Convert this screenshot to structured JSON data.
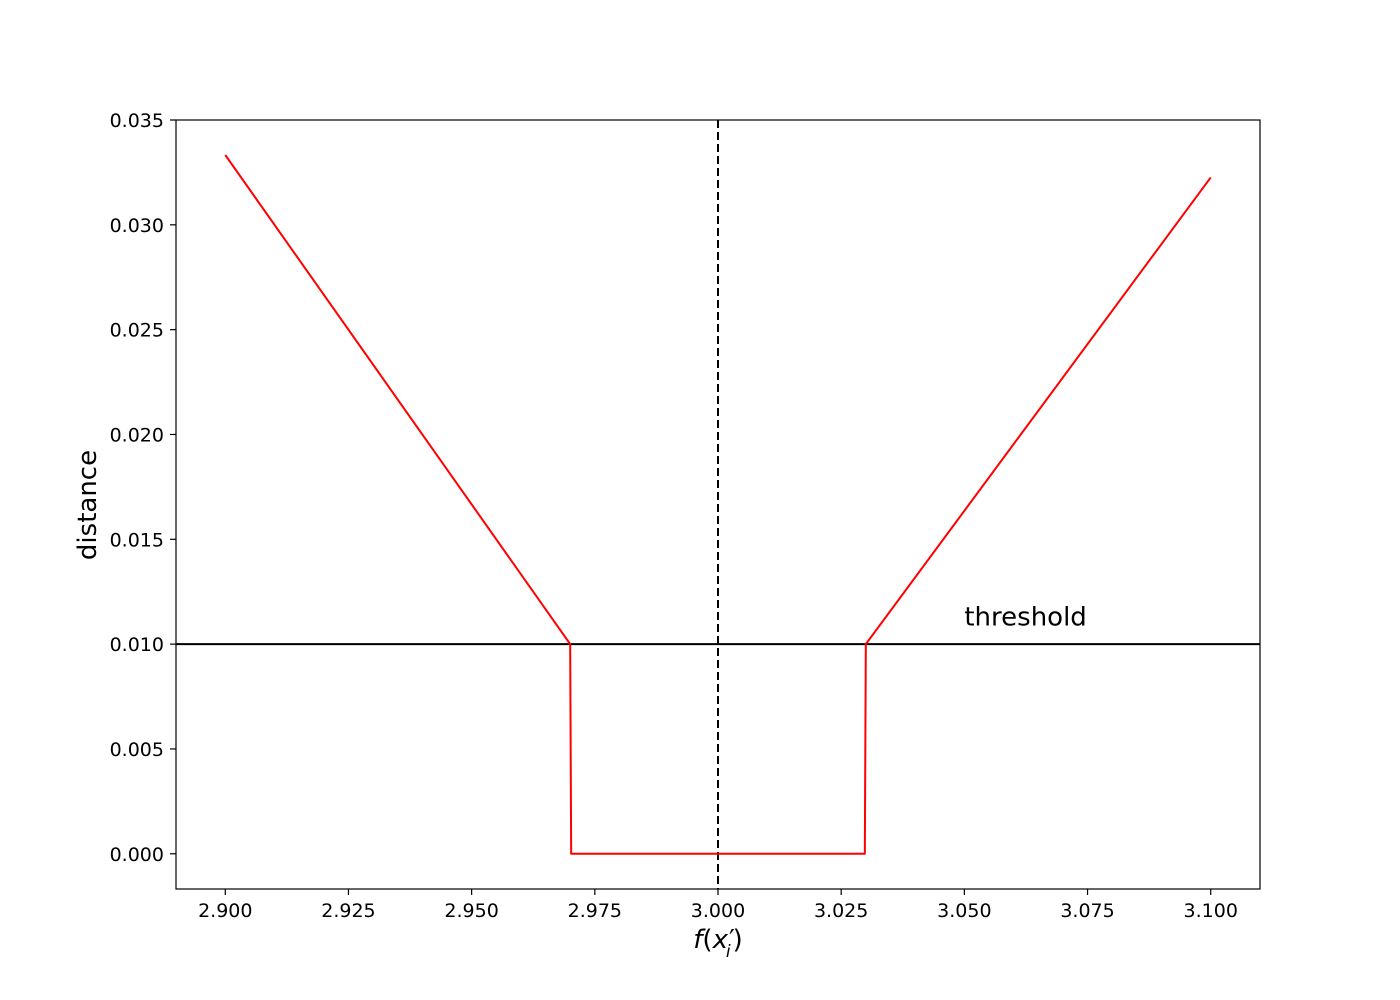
{
  "chart_data": {
    "type": "line",
    "xlabel_parts": {
      "f": "f",
      "open": "(",
      "x": "x",
      "prime": "′",
      "sub": "i",
      "close": ")"
    },
    "ylabel": "distance",
    "xlim": [
      2.89,
      3.11
    ],
    "ylim": [
      -0.00168,
      0.035
    ],
    "xticks": [
      "2.900",
      "2.925",
      "2.950",
      "2.975",
      "3.000",
      "3.025",
      "3.050",
      "3.075",
      "3.100"
    ],
    "yticks": [
      "0.000",
      "0.005",
      "0.010",
      "0.015",
      "0.020",
      "0.025",
      "0.030",
      "0.035"
    ],
    "grid": false,
    "series": [
      {
        "color": "#ff0000",
        "points": [
          [
            2.9,
            0.03333
          ],
          [
            2.97,
            0.01
          ],
          [
            2.9702,
            0.0
          ],
          [
            3.0298,
            0.0
          ],
          [
            3.03,
            0.01
          ],
          [
            3.1,
            0.03226
          ]
        ]
      }
    ],
    "hlines": [
      {
        "y": 0.01,
        "color": "#000000",
        "style": "solid"
      }
    ],
    "vlines": [
      {
        "x": 3.0,
        "color": "#000000",
        "style": "dashed"
      }
    ],
    "annotations": [
      {
        "text": "threshold",
        "x": 3.05,
        "y": 0.0109
      }
    ]
  }
}
